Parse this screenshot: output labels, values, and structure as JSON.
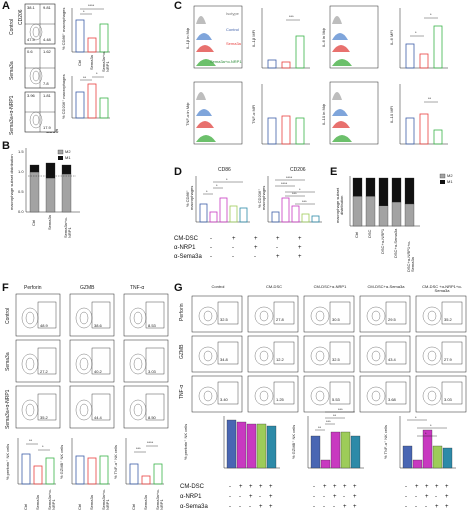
{
  "colors": {
    "ctrl": "#3e5fa8",
    "sema3a": "#e8413f",
    "sema_nrp1": "#3ab449",
    "panelE_m2": "#a3a3a3",
    "panelE_m1": "#111111",
    "dsc": "#4966b3",
    "dsc_nrp1": "#b24fb8",
    "dsc_sema": "#9dcc59",
    "dsc_both": "#2d8aa8",
    "magenta": "#c839c0",
    "hist_isotype": "#bdbdbd",
    "hist_control": "#7fa5db",
    "hist_sema": "#e8716e",
    "hist_nrp": "#6cc06b"
  },
  "panel_labels": {
    "a": "A",
    "b": "B",
    "c": "C",
    "d": "D",
    "e": "E",
    "f": "F",
    "g": "G"
  },
  "panelA": {
    "row_labels": [
      "Control",
      "Sema3a",
      "Sema3a+α-NRP1"
    ],
    "xaxis": "CD86",
    "yaxis": "CD206",
    "quadrants": [
      [
        "38.1",
        "9.81",
        "47.5",
        "4.48"
      ],
      [
        "0.6",
        "1.62",
        "",
        "7.8"
      ],
      [
        "3.96",
        "1.81",
        "",
        "17.9"
      ]
    ],
    "bar1_ylabel": "% CD86⁺ macrophages",
    "bar2_ylabel": "% CD206⁺ macrophages",
    "group_ticks": [
      "Ctrl",
      "Sema3a",
      "Sema3a+α-NRP1"
    ],
    "sig": [
      "*",
      "****",
      "**",
      "*"
    ]
  },
  "panelB": {
    "ylabel": "macrophage subset distribution",
    "legend": [
      "M2",
      "M1"
    ],
    "ticks": [
      "Ctrl",
      "Sema3a",
      "Sema3a+α-NRP1"
    ],
    "yticks": [
      "0.0",
      "0.5",
      "1.0",
      "1.5"
    ]
  },
  "panelC": {
    "hist_titles": [
      "IL-1β in Mф",
      "IL-6 in Mф",
      "TNF-α in Mф",
      "IL-10 in Mф"
    ],
    "legend": [
      "Isotype",
      "Control",
      "Sema3a",
      "Sema3a+α-NRP1"
    ],
    "bar_ylabels": [
      "IL-1β MFI",
      "IL-6 MFI",
      "TNF-α MFI",
      "IL-10 MFI"
    ],
    "sig": [
      "***",
      "*",
      "*",
      "**"
    ]
  },
  "panelD": {
    "titles": [
      "CD86",
      "CD206"
    ],
    "ylabels": [
      "% CD86⁺ macrophages",
      "% CD206⁺ macrophages"
    ],
    "row_labels": [
      "CM-DSC",
      "α-NRP1",
      "α-Sema3a"
    ],
    "signs": [
      [
        "-",
        "+",
        "+",
        "+",
        "+"
      ],
      [
        "-",
        "-",
        "+",
        "-",
        "+"
      ],
      [
        "-",
        "-",
        "-",
        "+",
        "+"
      ]
    ],
    "sig_left": [
      "*",
      "*",
      "*"
    ],
    "sig_right": [
      "****",
      "****",
      "***",
      "*",
      "***"
    ]
  },
  "panelE": {
    "ylabel": "macrophage subset distribution",
    "legend": [
      "M2",
      "M1"
    ],
    "ticks": [
      "Ctrl",
      "DSC",
      "DSC+α-NRP1",
      "DSC+α-Sema3a",
      "DSC+α-NRP1+α-Sema3a"
    ],
    "chart_data": {
      "type": "bar",
      "categories": [
        "Ctrl",
        "DSC",
        "DSC+α-NRP1",
        "DSC+α-Sema3a",
        "DSC+α-NRP1+α-Sema3a"
      ],
      "series": [
        {
          "name": "M2",
          "values": [
            0.62,
            0.62,
            0.42,
            0.5,
            0.46
          ]
        },
        {
          "name": "M1",
          "values": [
            0.38,
            0.38,
            0.58,
            0.5,
            0.54
          ]
        }
      ]
    }
  },
  "panelF": {
    "col_titles": [
      "Perforin",
      "GZMB",
      "TNF-α"
    ],
    "row_labels": [
      "Control",
      "Sema3a",
      "Sema3a+α-NRP1"
    ],
    "values": [
      [
        "48.9",
        "38.6",
        "8.53"
      ],
      [
        "27.2",
        "40.2",
        "3.03"
      ],
      [
        "35.2",
        "44.4",
        "8.50"
      ]
    ],
    "bar_ylabels": [
      "% perforin⁺ NK cells",
      "% GZMB⁺ NK cells",
      "% TNF-α⁺ NK cells"
    ],
    "ticks": [
      "Ctrl",
      "Sema3a",
      "Sema3a+α-NRP1"
    ],
    "sig": [
      "**",
      "*",
      "***",
      "****"
    ]
  },
  "panelG": {
    "col_titles": [
      "Control",
      "CM-DSC",
      "CM-DSC+α-NRP1",
      "CM-DSC+α-Sema3a",
      "CM-DSC +α-NRP1+α-Sema3a"
    ],
    "row_labels": [
      "Perforin",
      "GZMB",
      "TNF-α"
    ],
    "values": [
      [
        "32.5",
        "27.8",
        "30.5",
        "29.5",
        "35.2"
      ],
      [
        "34.8",
        "12.2",
        "32.5",
        "43.4",
        "27.9"
      ],
      [
        "3.40",
        "1.25",
        "5.53",
        "3.68",
        "3.03"
      ]
    ],
    "bar_ylabels": [
      "% perforin⁺ NK cells",
      "% GZMB⁺ NK cells",
      "% TNF-α⁺ NK cells"
    ],
    "row_labels_bottom": [
      "CM-DSC",
      "α-NRP1",
      "α-Sema3a"
    ],
    "signs": [
      [
        "-",
        "+",
        "+",
        "+",
        "+"
      ],
      [
        "-",
        "-",
        "+",
        "-",
        "+"
      ],
      [
        "-",
        "-",
        "-",
        "+",
        "+"
      ]
    ],
    "sig_mid": [
      "**",
      "***",
      "**",
      "***"
    ],
    "sig_right": [
      "*",
      "*",
      "*"
    ]
  }
}
